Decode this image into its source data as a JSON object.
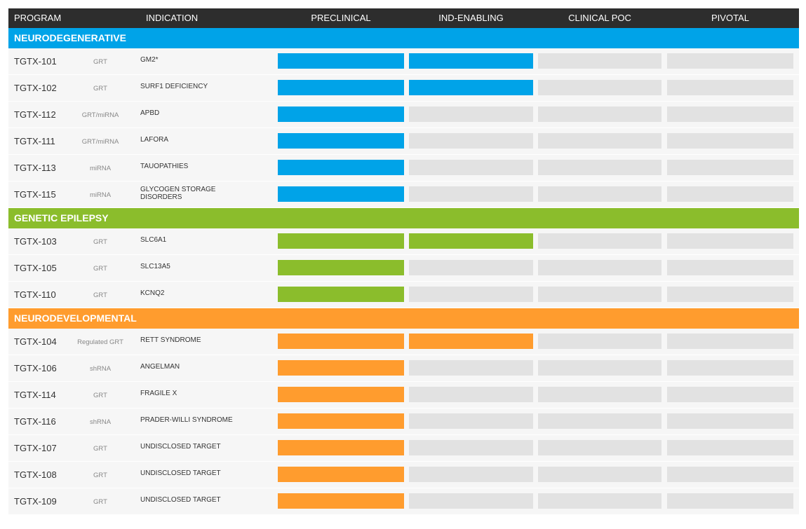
{
  "columns": {
    "program": "PROGRAM",
    "indication": "INDICATION",
    "stages": [
      "PRECLINICAL",
      "IND-ENABLING",
      "CLINICAL POC",
      "PIVOTAL"
    ]
  },
  "colors": {
    "header_bg": "#2d2d2d",
    "empty_stage": "#e2e2e2",
    "row_bg": "#f6f6f6"
  },
  "chart_data": {
    "type": "table",
    "stage_labels": [
      "PRECLINICAL",
      "IND-ENABLING",
      "CLINICAL POC",
      "PIVOTAL"
    ],
    "categories": [
      {
        "name": "NEURODEGENERATIVE",
        "color": "#00a3e8",
        "programs": [
          {
            "program": "TGTX-101",
            "modality": "GRT",
            "indication": "GM2*",
            "stages_completed": 2
          },
          {
            "program": "TGTX-102",
            "modality": "GRT",
            "indication": "SURF1 DEFICIENCY",
            "stages_completed": 2
          },
          {
            "program": "TGTX-112",
            "modality": "GRT/miRNA",
            "indication": "APBD",
            "stages_completed": 1
          },
          {
            "program": "TGTX-111",
            "modality": "GRT/miRNA",
            "indication": "LAFORA",
            "stages_completed": 1
          },
          {
            "program": "TGTX-113",
            "modality": "miRNA",
            "indication": "TAUOPATHIES",
            "stages_completed": 1
          },
          {
            "program": "TGTX-115",
            "modality": "miRNA",
            "indication": "GLYCOGEN STORAGE DISORDERS",
            "stages_completed": 1
          }
        ]
      },
      {
        "name": "GENETIC EPILEPSY",
        "color": "#8bbd2c",
        "programs": [
          {
            "program": "TGTX-103",
            "modality": "GRT",
            "indication": "SLC6A1",
            "stages_completed": 2
          },
          {
            "program": "TGTX-105",
            "modality": "GRT",
            "indication": "SLC13A5",
            "stages_completed": 1
          },
          {
            "program": "TGTX-110",
            "modality": "GRT",
            "indication": "KCNQ2",
            "stages_completed": 1
          }
        ]
      },
      {
        "name": "NEURODEVELOPMENTAL",
        "color": "#ff9c2e",
        "programs": [
          {
            "program": "TGTX-104",
            "modality": "Regulated GRT",
            "indication": "RETT SYNDROME",
            "stages_completed": 2
          },
          {
            "program": "TGTX-106",
            "modality": "shRNA",
            "indication": "ANGELMAN",
            "stages_completed": 1
          },
          {
            "program": "TGTX-114",
            "modality": "GRT",
            "indication": "FRAGILE X",
            "stages_completed": 1
          },
          {
            "program": "TGTX-116",
            "modality": "shRNA",
            "indication": "PRADER-WILLI SYNDROME",
            "stages_completed": 1
          },
          {
            "program": "TGTX-107",
            "modality": "GRT",
            "indication": "UNDISCLOSED TARGET",
            "stages_completed": 1
          },
          {
            "program": "TGTX-108",
            "modality": "GRT",
            "indication": "UNDISCLOSED TARGET",
            "stages_completed": 1
          },
          {
            "program": "TGTX-109",
            "modality": "GRT",
            "indication": "UNDISCLOSED TARGET",
            "stages_completed": 1
          }
        ]
      }
    ]
  }
}
